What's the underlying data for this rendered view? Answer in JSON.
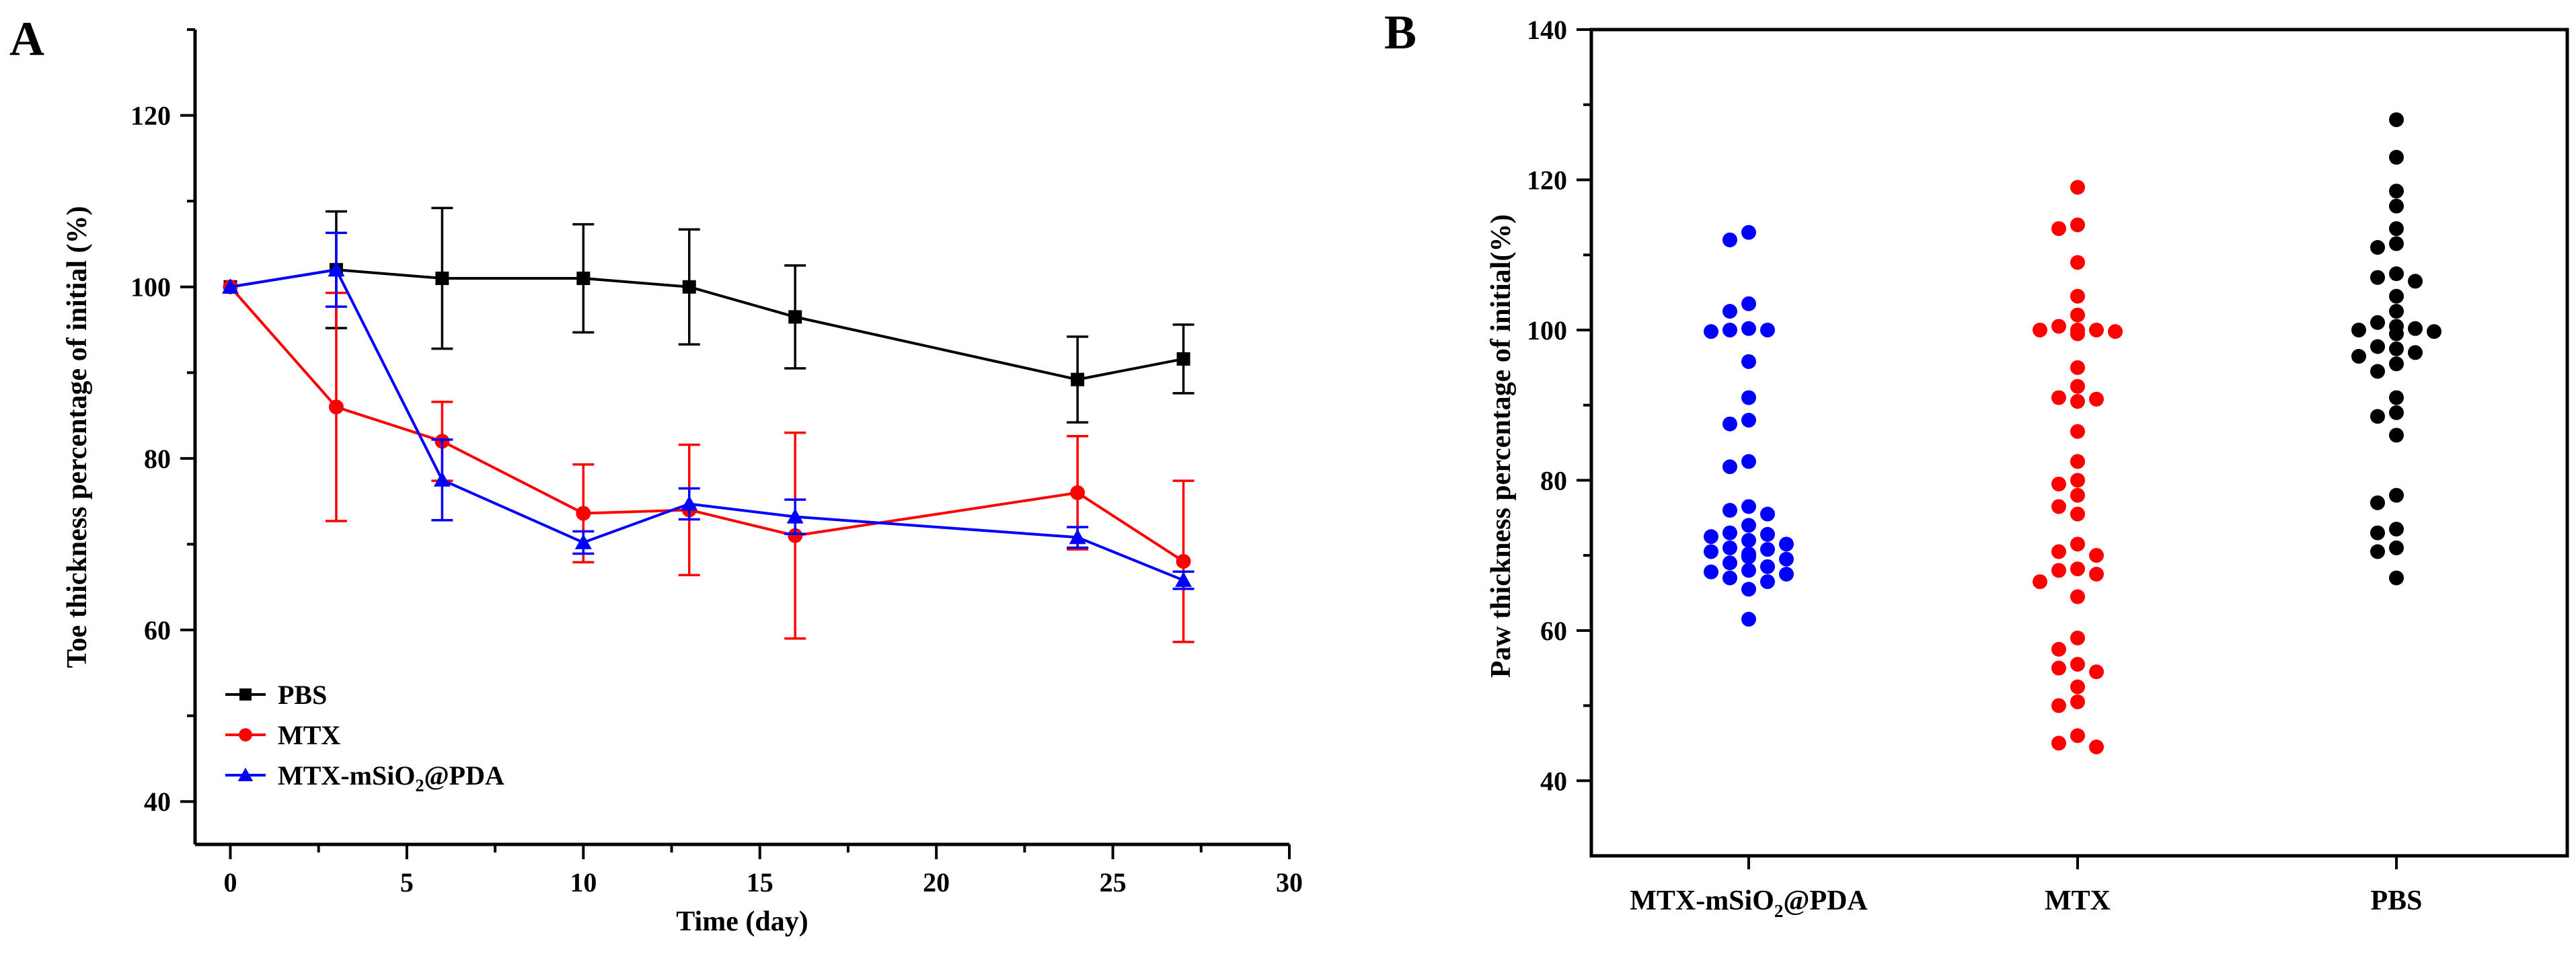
{
  "chart_data": [
    {
      "panel": "A",
      "type": "line",
      "xlabel": "Time (day)",
      "ylabel": "Toe thickness percentage  of initial (%)",
      "xlim": [
        -1,
        30
      ],
      "ylim": [
        35,
        130
      ],
      "xticks": [
        0,
        5,
        10,
        15,
        20,
        25,
        30
      ],
      "yticks": [
        40,
        60,
        80,
        100,
        120
      ],
      "series": [
        {
          "name": "PBS",
          "color": "#000000",
          "marker": "square",
          "x": [
            0,
            3,
            6,
            10,
            13,
            16,
            24,
            27
          ],
          "y": [
            100,
            102,
            101,
            101,
            100,
            96.5,
            89.2,
            91.6
          ],
          "err": [
            0,
            6.8,
            8.2,
            6.3,
            6.7,
            6,
            5,
            4
          ]
        },
        {
          "name": "MTX",
          "color": "#ff0000",
          "marker": "circle",
          "x": [
            0,
            3,
            6,
            10,
            13,
            16,
            24,
            27
          ],
          "y": [
            100,
            86,
            82,
            73.6,
            74,
            71,
            76,
            68
          ],
          "err": [
            0,
            13.3,
            4.6,
            5.7,
            7.6,
            12,
            6.6,
            9.4
          ]
        },
        {
          "name": "MTX-mSiO",
          "name_sub": "2",
          "name_rest": "@PDA",
          "color": "#0000ff",
          "marker": "triangle",
          "x": [
            0,
            3,
            6,
            10,
            13,
            16,
            24,
            27
          ],
          "y": [
            100,
            102,
            77.5,
            70.2,
            74.7,
            73.2,
            70.8,
            65.8
          ],
          "err": [
            0,
            4.3,
            4.7,
            1.3,
            1.8,
            2,
            1.2,
            1
          ]
        }
      ]
    },
    {
      "panel": "B",
      "type": "scatter",
      "ylabel": "Paw thickness percentage of initial(%)",
      "ylim": [
        30,
        140
      ],
      "yticks": [
        40,
        60,
        80,
        100,
        120,
        140
      ],
      "categories": [
        {
          "label": "MTX-mSiO",
          "label_sub": "2",
          "label_rest": "@PDA"
        },
        {
          "label": "MTX"
        },
        {
          "label": "PBS"
        }
      ],
      "groups": [
        {
          "category": "MTX-mSiO2@PDA",
          "color": "#0000ff",
          "values": [
            113,
            112,
            103.5,
            102.5,
            100.2,
            100,
            100,
            99.8,
            95.8,
            91,
            88,
            87.5,
            82.5,
            81.8,
            76.5,
            76,
            75.5,
            74,
            73,
            72.8,
            72.5,
            72,
            71.5,
            71,
            70.8,
            70.5,
            70.2,
            70,
            69.8,
            69.5,
            69,
            68.5,
            68,
            67.8,
            67.5,
            67,
            66.5,
            65.5,
            61.5
          ]
        },
        {
          "category": "MTX",
          "color": "#ff0000",
          "values": [
            119,
            114,
            113.5,
            109,
            104.5,
            102,
            100.5,
            100,
            100,
            100,
            99.8,
            99.5,
            95,
            92.5,
            91,
            90.8,
            90.5,
            86.5,
            82.5,
            80,
            79.5,
            78,
            76.5,
            75.5,
            71.5,
            70.5,
            70,
            68.2,
            68,
            67.5,
            66.5,
            64.5,
            59,
            57.5,
            55.5,
            55,
            54.5,
            52.5,
            50.5,
            50,
            46,
            45,
            44.5
          ]
        },
        {
          "category": "PBS",
          "color": "#000000",
          "values": [
            128,
            123,
            118.5,
            116.5,
            113.5,
            111.5,
            111,
            107.5,
            107,
            106.5,
            104.5,
            102.5,
            101,
            100.5,
            100.2,
            100,
            99.8,
            99.5,
            97.8,
            97.5,
            97,
            96.5,
            95.5,
            94.5,
            91,
            89,
            88.5,
            86,
            78,
            77,
            73.5,
            73,
            71,
            70.5,
            67
          ]
        }
      ]
    }
  ],
  "panels": {
    "a_letter": "A",
    "b_letter": "B"
  }
}
